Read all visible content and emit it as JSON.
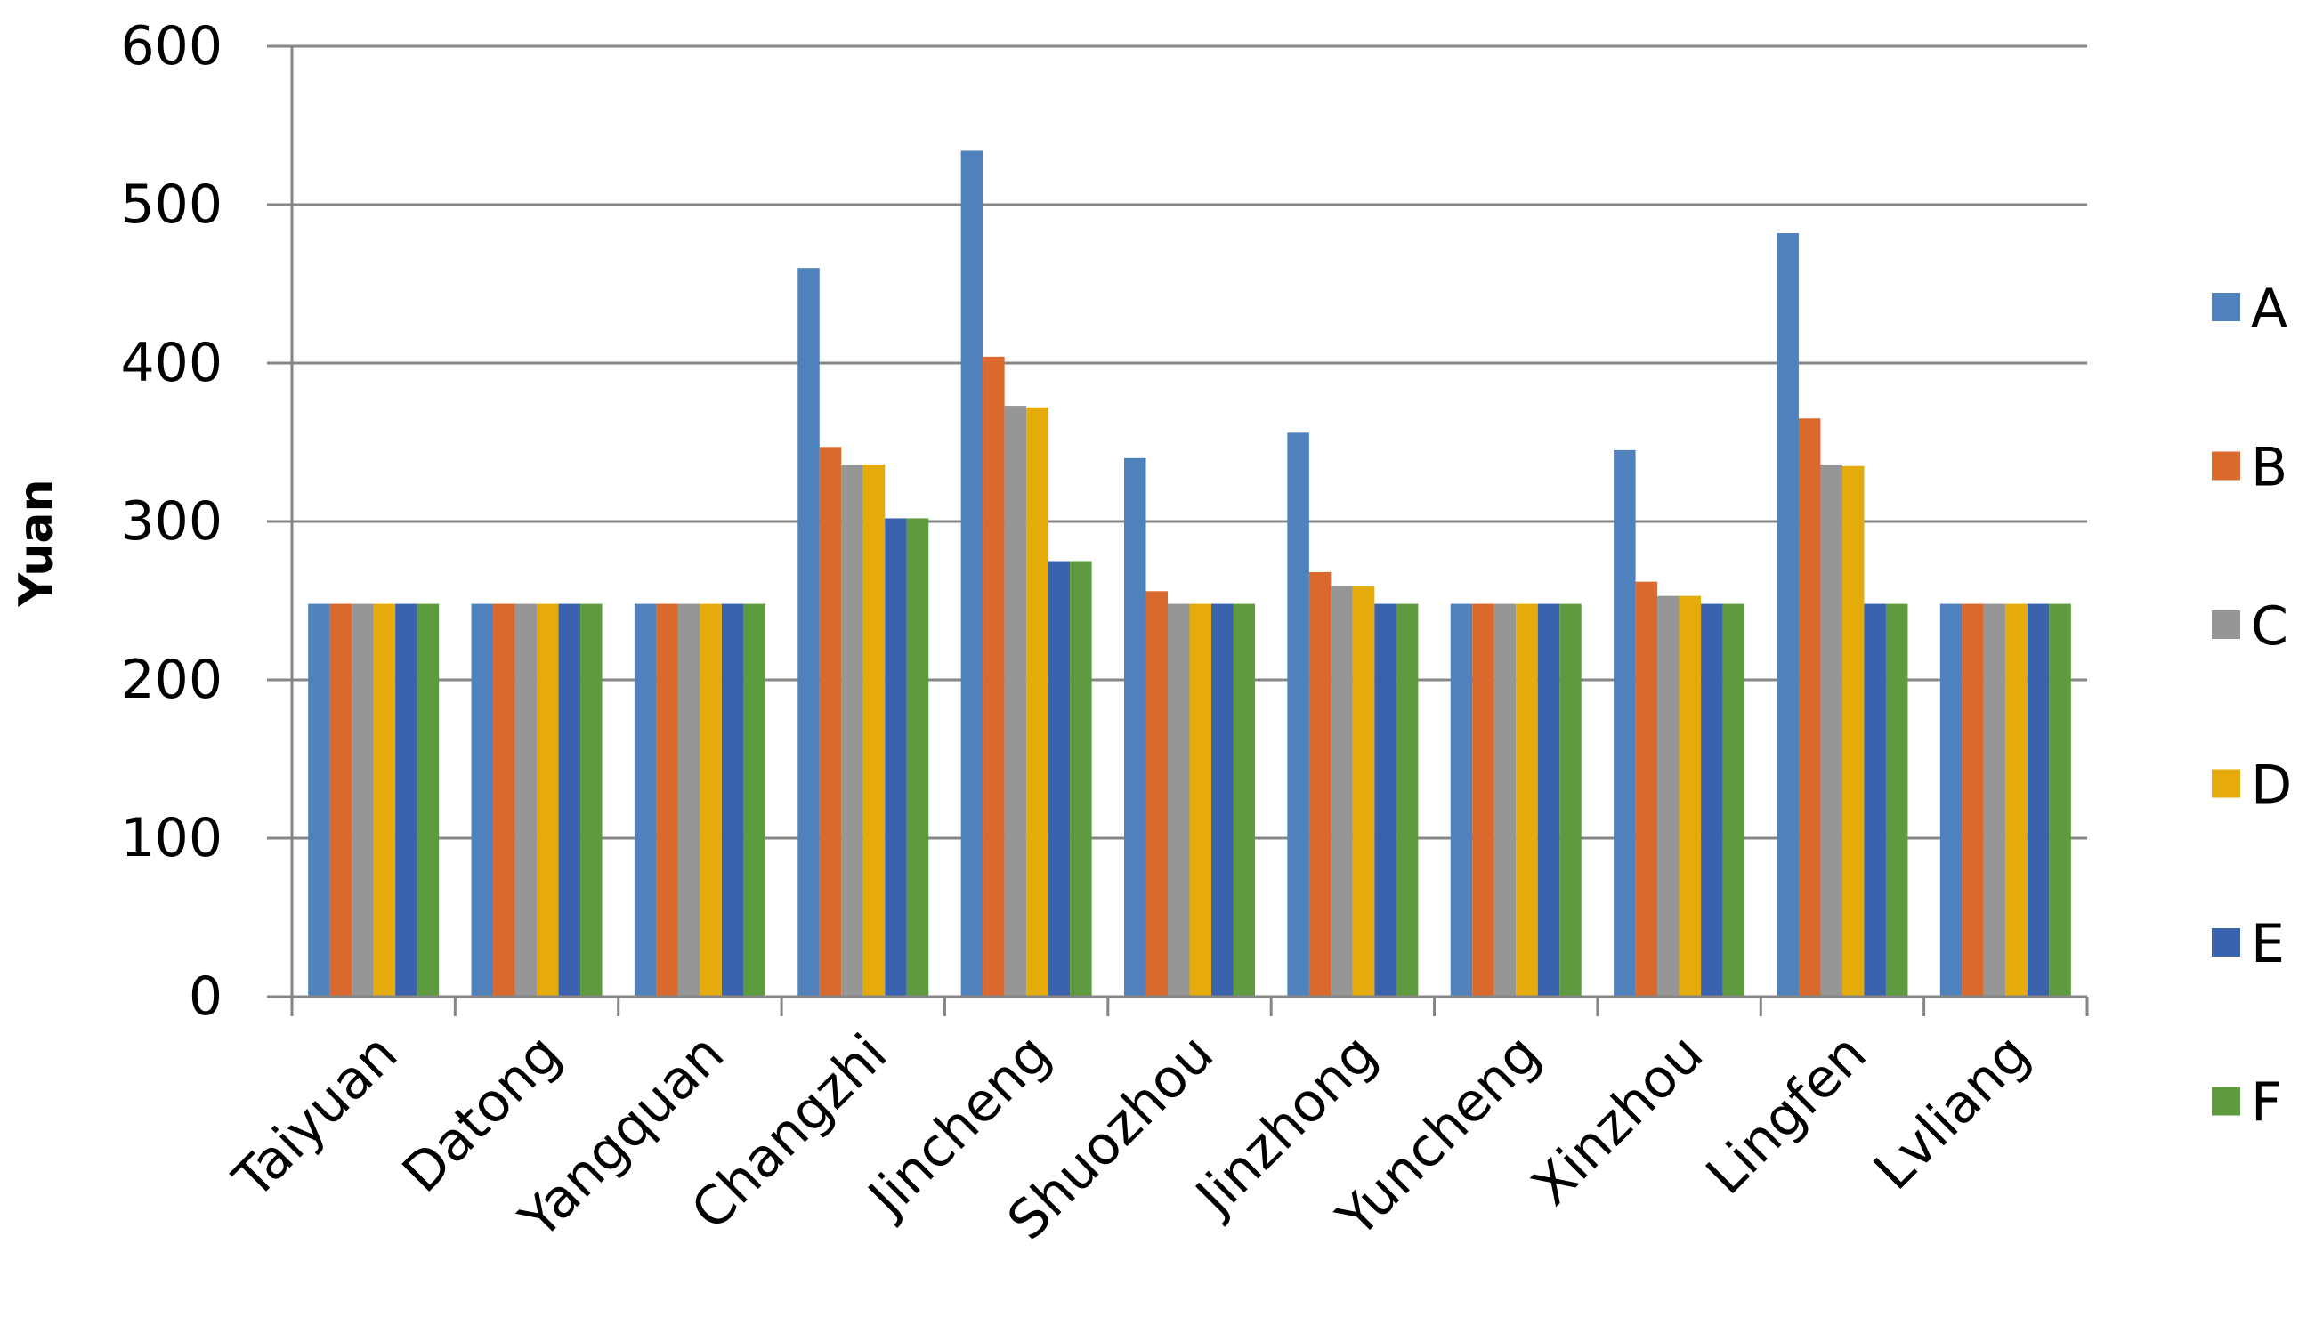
{
  "chart_data": {
    "type": "bar",
    "title": "",
    "xlabel": "",
    "ylabel": "Yuan",
    "ylim": [
      0,
      600
    ],
    "yticks": [
      0,
      100,
      200,
      300,
      400,
      500,
      600
    ],
    "grid": true,
    "legend_position": "right",
    "categories": [
      "Taiyuan",
      "Datong",
      "Yangquan",
      "Changzhi",
      "Jincheng",
      "Shuozhou",
      "Jinzhong",
      "Yuncheng",
      "Xinzhou",
      "Lingfen",
      "Lvliang"
    ],
    "series": [
      {
        "name": "A",
        "color": "#4F81BD",
        "values": [
          248,
          248,
          248,
          460,
          534,
          340,
          356,
          248,
          345,
          482,
          248
        ]
      },
      {
        "name": "B",
        "color": "#D9692C",
        "values": [
          248,
          248,
          248,
          347,
          404,
          256,
          268,
          248,
          262,
          365,
          248
        ]
      },
      {
        "name": "C",
        "color": "#969696",
        "values": [
          248,
          248,
          248,
          336,
          373,
          248,
          259,
          248,
          253,
          336,
          248
        ]
      },
      {
        "name": "D",
        "color": "#E5AB0B",
        "values": [
          248,
          248,
          248,
          336,
          372,
          248,
          259,
          248,
          253,
          335,
          248
        ]
      },
      {
        "name": "E",
        "color": "#3A62AD",
        "values": [
          248,
          248,
          248,
          302,
          275,
          248,
          248,
          248,
          248,
          248,
          248
        ]
      },
      {
        "name": "F",
        "color": "#5D9B3E",
        "values": [
          248,
          248,
          248,
          302,
          275,
          248,
          248,
          248,
          248,
          248,
          248
        ]
      }
    ]
  }
}
